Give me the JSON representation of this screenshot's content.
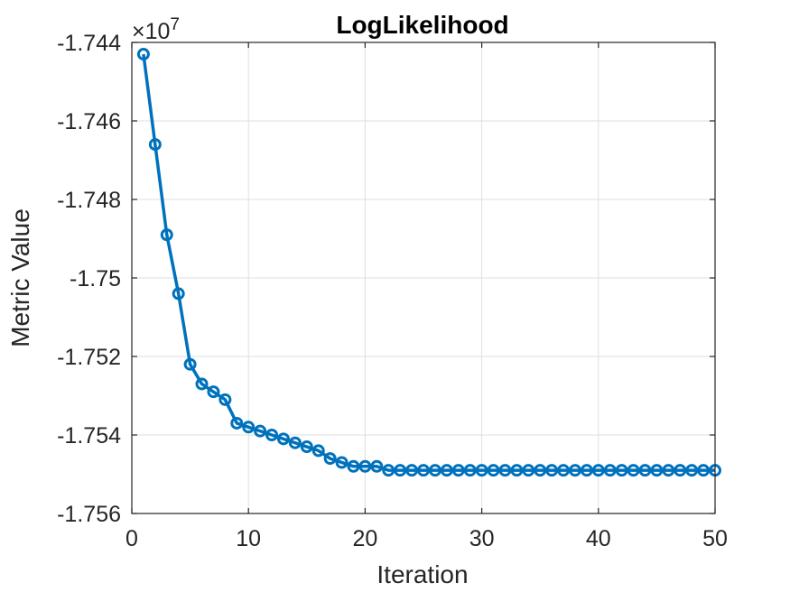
{
  "chart_data": {
    "type": "line",
    "title": "LogLikelihood",
    "xlabel": "Iteration",
    "ylabel": "Metric Value",
    "multiplier_base": "×10",
    "multiplier_exponent": "7",
    "xlim": [
      0,
      50
    ],
    "ylim": [
      -1.756,
      -1.744
    ],
    "xticks": [
      0,
      10,
      20,
      30,
      40,
      50
    ],
    "xtick_labels": [
      "0",
      "10",
      "20",
      "30",
      "40",
      "50"
    ],
    "yticks": [
      -1.756,
      -1.754,
      -1.752,
      -1.75,
      -1.748,
      -1.746,
      -1.744
    ],
    "ytick_labels": [
      "-1.756",
      "-1.754",
      "-1.752",
      "-1.75",
      "-1.748",
      "-1.746",
      "-1.744"
    ],
    "grid": true,
    "marker": "circle",
    "color": "#0072BD",
    "series": [
      {
        "x": [
          1,
          2,
          3,
          4,
          5,
          6,
          7,
          8,
          9,
          10,
          11,
          12,
          13,
          14,
          15,
          16,
          17,
          18,
          19,
          20,
          21,
          22,
          23,
          24,
          25,
          26,
          27,
          28,
          29,
          30,
          31,
          32,
          33,
          34,
          35,
          36,
          37,
          38,
          39,
          40,
          41,
          42,
          43,
          44,
          45,
          46,
          47,
          48,
          49,
          50
        ],
        "values": [
          -1.7443,
          -1.7466,
          -1.7489,
          -1.7504,
          -1.7522,
          -1.7527,
          -1.7529,
          -1.7531,
          -1.7537,
          -1.7538,
          -1.7539,
          -1.754,
          -1.7541,
          -1.7542,
          -1.7543,
          -1.7544,
          -1.7546,
          -1.7547,
          -1.7548,
          -1.7548,
          -1.7548,
          -1.7549,
          -1.7549,
          -1.7549,
          -1.7549,
          -1.7549,
          -1.7549,
          -1.7549,
          -1.7549,
          -1.7549,
          -1.7549,
          -1.7549,
          -1.7549,
          -1.7549,
          -1.7549,
          -1.7549,
          -1.7549,
          -1.7549,
          -1.7549,
          -1.7549,
          -1.7549,
          -1.7549,
          -1.7549,
          -1.7549,
          -1.7549,
          -1.7549,
          -1.7549,
          -1.7549,
          -1.7549,
          -1.7549
        ]
      }
    ]
  }
}
